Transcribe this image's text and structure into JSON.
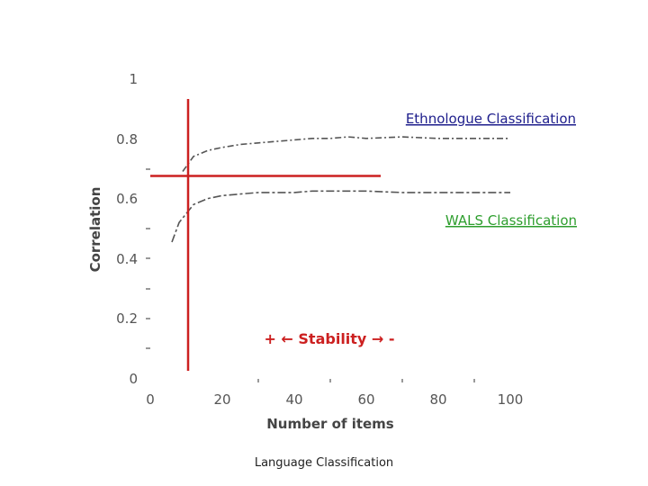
{
  "chart_data": {
    "type": "line",
    "title": "",
    "xlabel": "Number of items",
    "ylabel": "Correlation",
    "xlim": [
      0,
      100
    ],
    "ylim": [
      0,
      1
    ],
    "x_ticks": [
      "0",
      "20",
      "40",
      "60",
      "80",
      "100"
    ],
    "y_ticks": [
      "0",
      "0.2",
      "0.4",
      "0.6",
      "0.8",
      "1"
    ],
    "grid": false,
    "series": [
      {
        "name": "Ethnologue Classification",
        "color": "#1e1e8c",
        "points": [
          [
            9,
            0.69
          ],
          [
            12,
            0.74
          ],
          [
            16,
            0.76
          ],
          [
            20,
            0.77
          ],
          [
            25,
            0.78
          ],
          [
            30,
            0.785
          ],
          [
            35,
            0.79
          ],
          [
            40,
            0.795
          ],
          [
            45,
            0.8
          ],
          [
            50,
            0.8
          ],
          [
            55,
            0.805
          ],
          [
            60,
            0.8
          ],
          [
            70,
            0.805
          ],
          [
            80,
            0.8
          ],
          [
            90,
            0.8
          ],
          [
            100,
            0.8
          ]
        ]
      },
      {
        "name": "WALS Classification",
        "color": "#2e9e2e",
        "points": [
          [
            6,
            0.455
          ],
          [
            8,
            0.52
          ],
          [
            10,
            0.55
          ],
          [
            12,
            0.58
          ],
          [
            16,
            0.6
          ],
          [
            20,
            0.61
          ],
          [
            25,
            0.615
          ],
          [
            30,
            0.62
          ],
          [
            35,
            0.62
          ],
          [
            40,
            0.62
          ],
          [
            45,
            0.625
          ],
          [
            50,
            0.625
          ],
          [
            60,
            0.625
          ],
          [
            70,
            0.62
          ],
          [
            80,
            0.62
          ],
          [
            90,
            0.62
          ],
          [
            100,
            0.62
          ]
        ]
      }
    ],
    "reference_lines": {
      "vertical_x": 10.5,
      "horizontal_y": 0.675,
      "horizontal_x_range": [
        0,
        64
      ],
      "color": "#cc2020"
    },
    "annotation": "+ ← Stability → -"
  },
  "footer_text": "Language Classification"
}
